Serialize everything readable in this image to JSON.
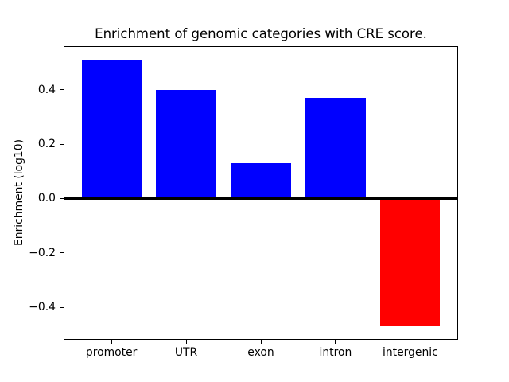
{
  "chart_data": {
    "type": "bar",
    "title": "Enrichment of genomic categories with CRE score.",
    "xlabel": "",
    "ylabel": "Enrichment (log10)",
    "categories": [
      "promoter",
      "UTR",
      "exon",
      "intron",
      "intergenic"
    ],
    "values": [
      0.51,
      0.4,
      0.13,
      0.37,
      -0.47
    ],
    "bar_colors": [
      "#0000ff",
      "#0000ff",
      "#0000ff",
      "#0000ff",
      "#ff0000"
    ],
    "positive_color": "#0000ff",
    "negative_color": "#ff0000",
    "bar_width_fraction": 0.8,
    "ylim": [
      -0.52,
      0.56
    ],
    "xlim": [
      -0.64,
      4.64
    ],
    "yticks": {
      "values": [
        0.4,
        0.2,
        0.0,
        -0.2,
        -0.4
      ],
      "labels": [
        "0.4",
        "0.2",
        "0.0",
        "−0.2",
        "−0.4"
      ]
    },
    "zero_line": {
      "y": 0.0,
      "color": "#000000"
    },
    "grid": false,
    "legend": null,
    "background": "#ffffff",
    "spine_color": "#000000"
  }
}
